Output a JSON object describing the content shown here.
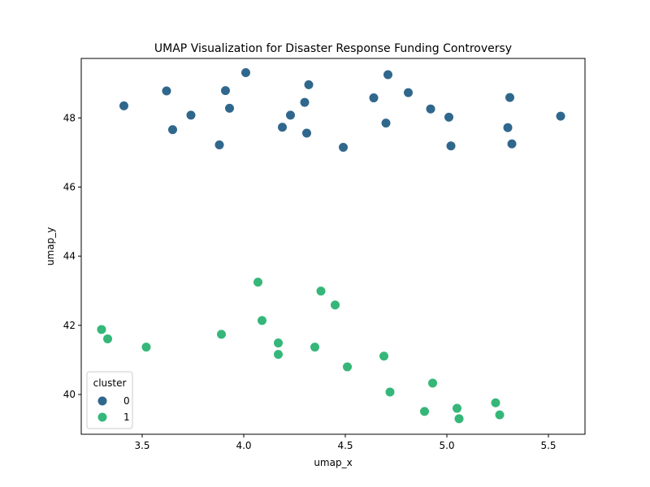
{
  "chart_data": {
    "type": "scatter",
    "title": "UMAP Visualization for Disaster Response Funding Controversy",
    "xlabel": "umap_x",
    "ylabel": "umap_y",
    "xlim": [
      3.2,
      5.68
    ],
    "ylim": [
      38.85,
      49.72
    ],
    "xticks": [
      3.5,
      4.0,
      4.5,
      5.0,
      5.5
    ],
    "xtick_labels": [
      "3.5",
      "4.0",
      "4.5",
      "5.0",
      "5.5"
    ],
    "yticks": [
      40,
      42,
      44,
      46,
      48
    ],
    "ytick_labels": [
      "40",
      "42",
      "44",
      "46",
      "48"
    ],
    "grid": false,
    "legend": {
      "title": "cluster",
      "placement": "lower-left"
    },
    "series": [
      {
        "name": "0",
        "color": "#30678d",
        "points": [
          [
            3.41,
            48.35
          ],
          [
            3.62,
            48.78
          ],
          [
            3.65,
            47.66
          ],
          [
            3.74,
            48.08
          ],
          [
            3.88,
            47.22
          ],
          [
            3.91,
            48.79
          ],
          [
            3.93,
            48.28
          ],
          [
            4.01,
            49.31
          ],
          [
            4.19,
            47.73
          ],
          [
            4.23,
            48.08
          ],
          [
            4.3,
            48.45
          ],
          [
            4.31,
            47.56
          ],
          [
            4.32,
            48.96
          ],
          [
            4.49,
            47.15
          ],
          [
            4.64,
            48.58
          ],
          [
            4.7,
            47.85
          ],
          [
            4.71,
            49.25
          ],
          [
            4.81,
            48.73
          ],
          [
            4.92,
            48.26
          ],
          [
            5.01,
            48.02
          ],
          [
            5.02,
            47.19
          ],
          [
            5.3,
            47.72
          ],
          [
            5.31,
            48.59
          ],
          [
            5.32,
            47.25
          ],
          [
            5.56,
            48.05
          ]
        ]
      },
      {
        "name": "1",
        "color": "#35b779",
        "points": [
          [
            3.3,
            41.88
          ],
          [
            3.33,
            41.61
          ],
          [
            3.52,
            41.37
          ],
          [
            3.89,
            41.74
          ],
          [
            4.07,
            43.25
          ],
          [
            4.09,
            42.14
          ],
          [
            4.17,
            41.49
          ],
          [
            4.17,
            41.16
          ],
          [
            4.35,
            41.37
          ],
          [
            4.38,
            42.99
          ],
          [
            4.45,
            42.59
          ],
          [
            4.51,
            40.8
          ],
          [
            4.69,
            41.11
          ],
          [
            4.72,
            40.07
          ],
          [
            4.89,
            39.51
          ],
          [
            4.93,
            40.33
          ],
          [
            5.05,
            39.6
          ],
          [
            5.06,
            39.3
          ],
          [
            5.24,
            39.76
          ],
          [
            5.26,
            39.41
          ]
        ]
      }
    ]
  }
}
